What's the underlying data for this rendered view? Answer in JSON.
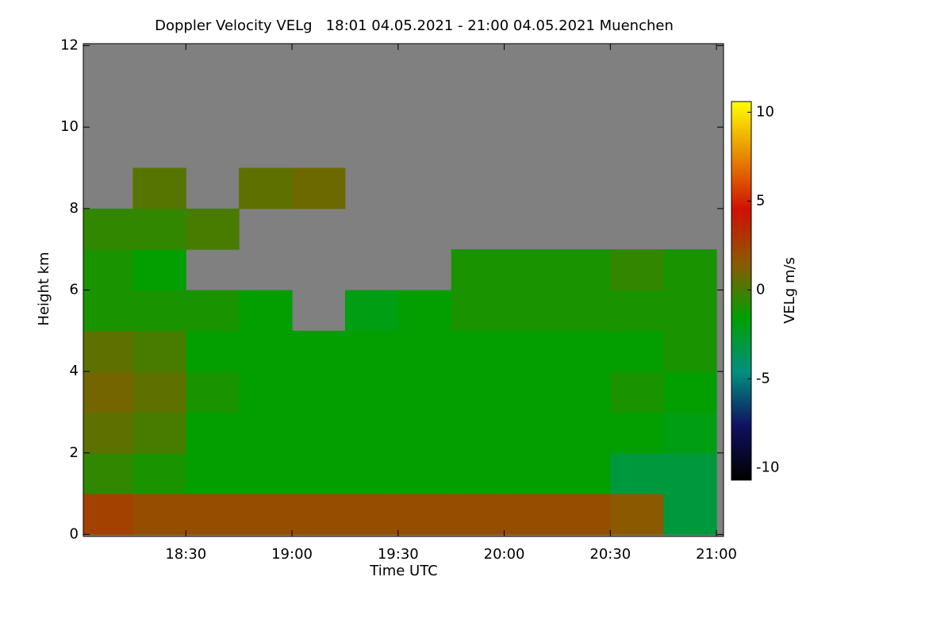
{
  "chart_data": {
    "type": "heatmap",
    "title": "Doppler Velocity VELg   18:01 04.05.2021 - 21:00 04.05.2021 Muenchen",
    "x_label": "Time UTC",
    "y_label": "Height km",
    "colorbar_label": "VELg m/s",
    "x_bins": [
      1081,
      1095,
      1110,
      1125,
      1140,
      1155,
      1170,
      1185,
      1200,
      1215,
      1230,
      1245,
      1260
    ],
    "y_bins": [
      0,
      1,
      2,
      3,
      4,
      5,
      6,
      7,
      8,
      9,
      10,
      11,
      12
    ],
    "values": [
      [
        2.5,
        2,
        2,
        2,
        2,
        2,
        2,
        2,
        2,
        2,
        1.5,
        -3
      ],
      [
        -0.5,
        -1,
        -1.5,
        -1.5,
        -1.5,
        -1.5,
        -1.5,
        -1.5,
        -1.5,
        -1.5,
        -3,
        -3
      ],
      [
        0.5,
        0,
        -1.5,
        -1.5,
        -1.5,
        -1.5,
        -1.5,
        -1.5,
        -1.5,
        -1.5,
        -1.5,
        -2
      ],
      [
        1,
        0.5,
        -1,
        -1.5,
        -1.5,
        -1.5,
        -1.5,
        -1.5,
        -1.5,
        -1.5,
        -1,
        -1.5
      ],
      [
        0.5,
        0,
        -1.5,
        -1.5,
        -1.5,
        -1.5,
        -1.5,
        -1.5,
        -1.5,
        -1.5,
        -1.5,
        -1
      ],
      [
        -1,
        -1,
        -1,
        -1.5,
        null,
        -2,
        -1.5,
        -1,
        -1,
        -1,
        -1,
        -1
      ],
      [
        -1,
        -1.5,
        null,
        null,
        null,
        null,
        null,
        -1,
        -1,
        -1,
        -0.5,
        -1
      ],
      [
        -0.5,
        -0.5,
        0,
        null,
        null,
        null,
        null,
        null,
        null,
        null,
        null,
        null
      ],
      [
        null,
        0.3,
        null,
        0.5,
        0.8,
        null,
        null,
        null,
        null,
        null,
        null,
        null
      ],
      [
        null,
        null,
        null,
        null,
        null,
        null,
        null,
        null,
        null,
        null,
        null,
        null
      ],
      [
        null,
        null,
        null,
        null,
        null,
        null,
        null,
        null,
        null,
        null,
        null,
        null
      ],
      [
        null,
        null,
        null,
        null,
        null,
        null,
        null,
        null,
        null,
        null,
        null,
        null
      ]
    ],
    "xlim": [
      1081,
      1262
    ],
    "xticks": [
      {
        "value": 1110,
        "label": "18:30"
      },
      {
        "value": 1140,
        "label": "19:00"
      },
      {
        "value": 1170,
        "label": "19:30"
      },
      {
        "value": 1200,
        "label": "20:00"
      },
      {
        "value": 1230,
        "label": "20:30"
      },
      {
        "value": 1260,
        "label": "21:00"
      }
    ],
    "ylim": [
      -0.05,
      12.05
    ],
    "yticks": [
      0,
      2,
      4,
      6,
      8,
      10,
      12
    ],
    "clim": [
      -10.7,
      10.6
    ],
    "cticks": [
      -10,
      -5,
      0,
      5,
      10
    ],
    "colormap": [
      "#000000",
      "#101060",
      "#009080",
      "#00a000",
      "#8a5a00",
      "#d01000",
      "#e88a00",
      "#ffff00"
    ],
    "missing_color": "#808080"
  }
}
